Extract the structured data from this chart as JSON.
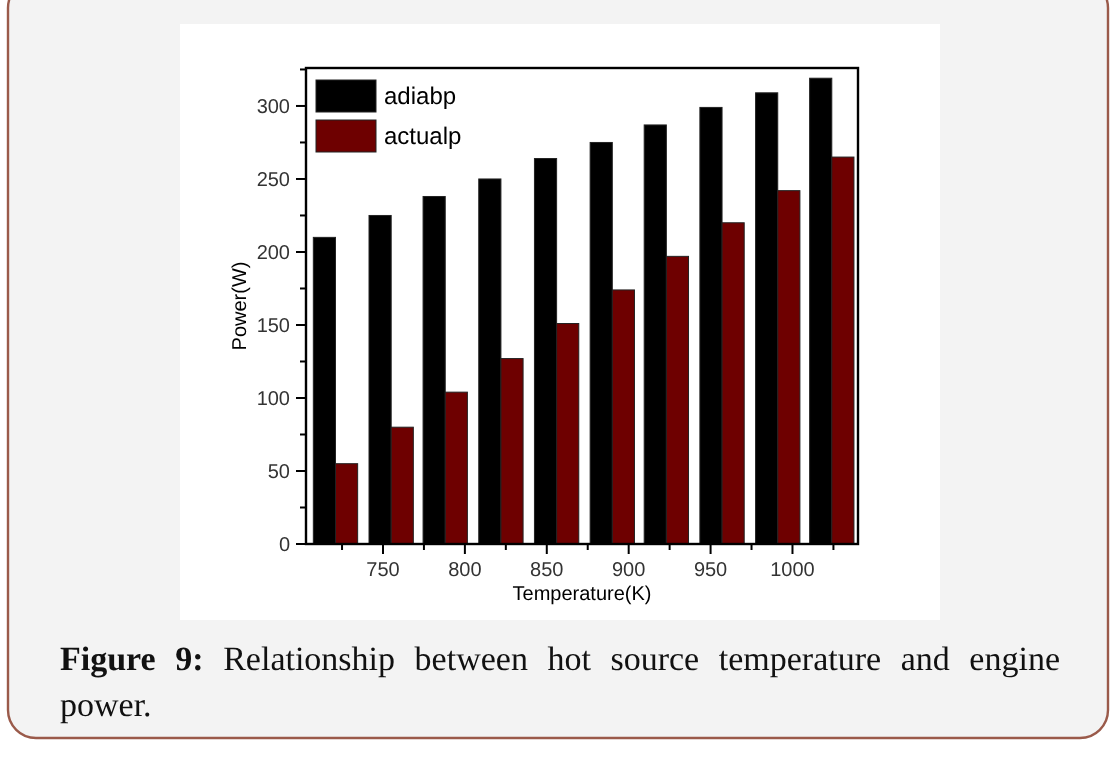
{
  "chart_data": {
    "type": "bar",
    "xlabel": "Temperature(K)",
    "ylabel": "Power(W)",
    "x": [
      721,
      755,
      788,
      822,
      856,
      890,
      923,
      957,
      991,
      1024
    ],
    "series": [
      {
        "name": "adiabp",
        "color": "#000000",
        "values": [
          210,
          225,
          238,
          250,
          264,
          275,
          287,
          299,
          309,
          319
        ]
      },
      {
        "name": "actualp",
        "color": "#6e0000",
        "values": [
          55,
          80,
          104,
          127,
          151,
          174,
          197,
          220,
          242,
          265
        ]
      }
    ],
    "xlim": [
      703,
      1040
    ],
    "xticks": [
      {
        "value": 725,
        "label": null
      },
      750,
      {
        "value": 775,
        "label": null
      },
      800,
      {
        "value": 825,
        "label": null
      },
      850,
      {
        "value": 875,
        "label": null
      },
      900,
      {
        "value": 925,
        "label": null
      },
      950,
      {
        "value": 975,
        "label": null
      },
      1000,
      {
        "value": 1025,
        "label": null
      }
    ],
    "ylim": [
      0,
      326
    ],
    "yticks": [
      0,
      {
        "value": 25,
        "label": null
      },
      50,
      {
        "value": 75,
        "label": null
      },
      100,
      {
        "value": 125,
        "label": null
      },
      150,
      {
        "value": 175,
        "label": null
      },
      200,
      {
        "value": 225,
        "label": null
      },
      250,
      {
        "value": 275,
        "label": null
      },
      300,
      {
        "value": 325,
        "label": null
      }
    ],
    "legend": "top left",
    "annotations": [
      "Figure 9: Relationship between hot source temperature and engine power."
    ]
  }
}
